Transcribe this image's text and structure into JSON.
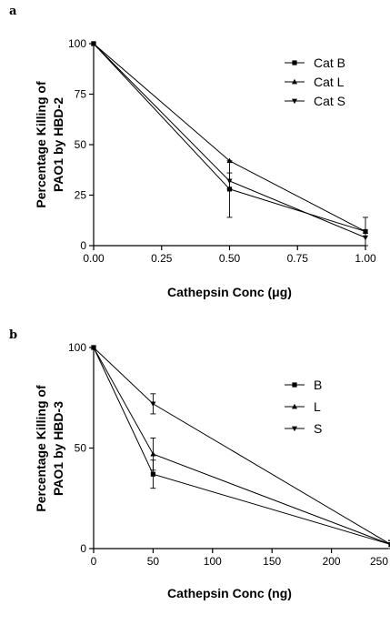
{
  "chart_data": [
    {
      "panel_label": "a",
      "type": "line",
      "xlabel": "Cathepsin Conc (μg)",
      "ylabel_lines": [
        "Percentage Killing of",
        "PAO1 by HBD-2"
      ],
      "xlim": [
        0,
        1
      ],
      "ylim": [
        0,
        100
      ],
      "xticks": [
        "0.00",
        "0.25",
        "0.50",
        "0.75",
        "1.00"
      ],
      "xtick_values": [
        0,
        0.25,
        0.5,
        0.75,
        1.0
      ],
      "yticks": [
        "0",
        "25",
        "50",
        "75",
        "100"
      ],
      "ytick_values": [
        0,
        25,
        50,
        75,
        100
      ],
      "legend_position": "top-right",
      "x": [
        0,
        0.5,
        1.0
      ],
      "series": [
        {
          "name": "Cat B",
          "marker": "square",
          "values": [
            100,
            28,
            7
          ],
          "err": [
            0,
            14,
            7
          ]
        },
        {
          "name": "Cat L",
          "marker": "triangle-up",
          "values": [
            100,
            42,
            7
          ],
          "err": [
            0,
            0,
            0
          ]
        },
        {
          "name": "Cat S",
          "marker": "triangle-down",
          "values": [
            100,
            32,
            4
          ],
          "err": [
            0,
            4,
            0
          ]
        }
      ]
    },
    {
      "panel_label": "b",
      "type": "line",
      "xlabel": "Cathepsin Conc (ng)",
      "ylabel_lines": [
        "Percentage Killing of",
        "PAO1 by HBD-3"
      ],
      "xlim": [
        0,
        250
      ],
      "ylim": [
        0,
        100
      ],
      "xticks": [
        "0",
        "50",
        "100",
        "150",
        "200",
        "250"
      ],
      "xtick_values": [
        0,
        50,
        100,
        150,
        200,
        250
      ],
      "yticks": [
        "0",
        "50",
        "100"
      ],
      "ytick_values": [
        0,
        50,
        100
      ],
      "legend_position": "top-right",
      "x": [
        0,
        50,
        250
      ],
      "series": [
        {
          "name": "B",
          "marker": "square",
          "values": [
            100,
            37,
            2
          ],
          "err": [
            0,
            7,
            2
          ]
        },
        {
          "name": "L",
          "marker": "triangle-up",
          "values": [
            100,
            47,
            2
          ],
          "err": [
            0,
            8,
            2
          ]
        },
        {
          "name": "S",
          "marker": "triangle-down",
          "values": [
            100,
            72,
            2
          ],
          "err": [
            0,
            5,
            2
          ]
        }
      ]
    }
  ]
}
